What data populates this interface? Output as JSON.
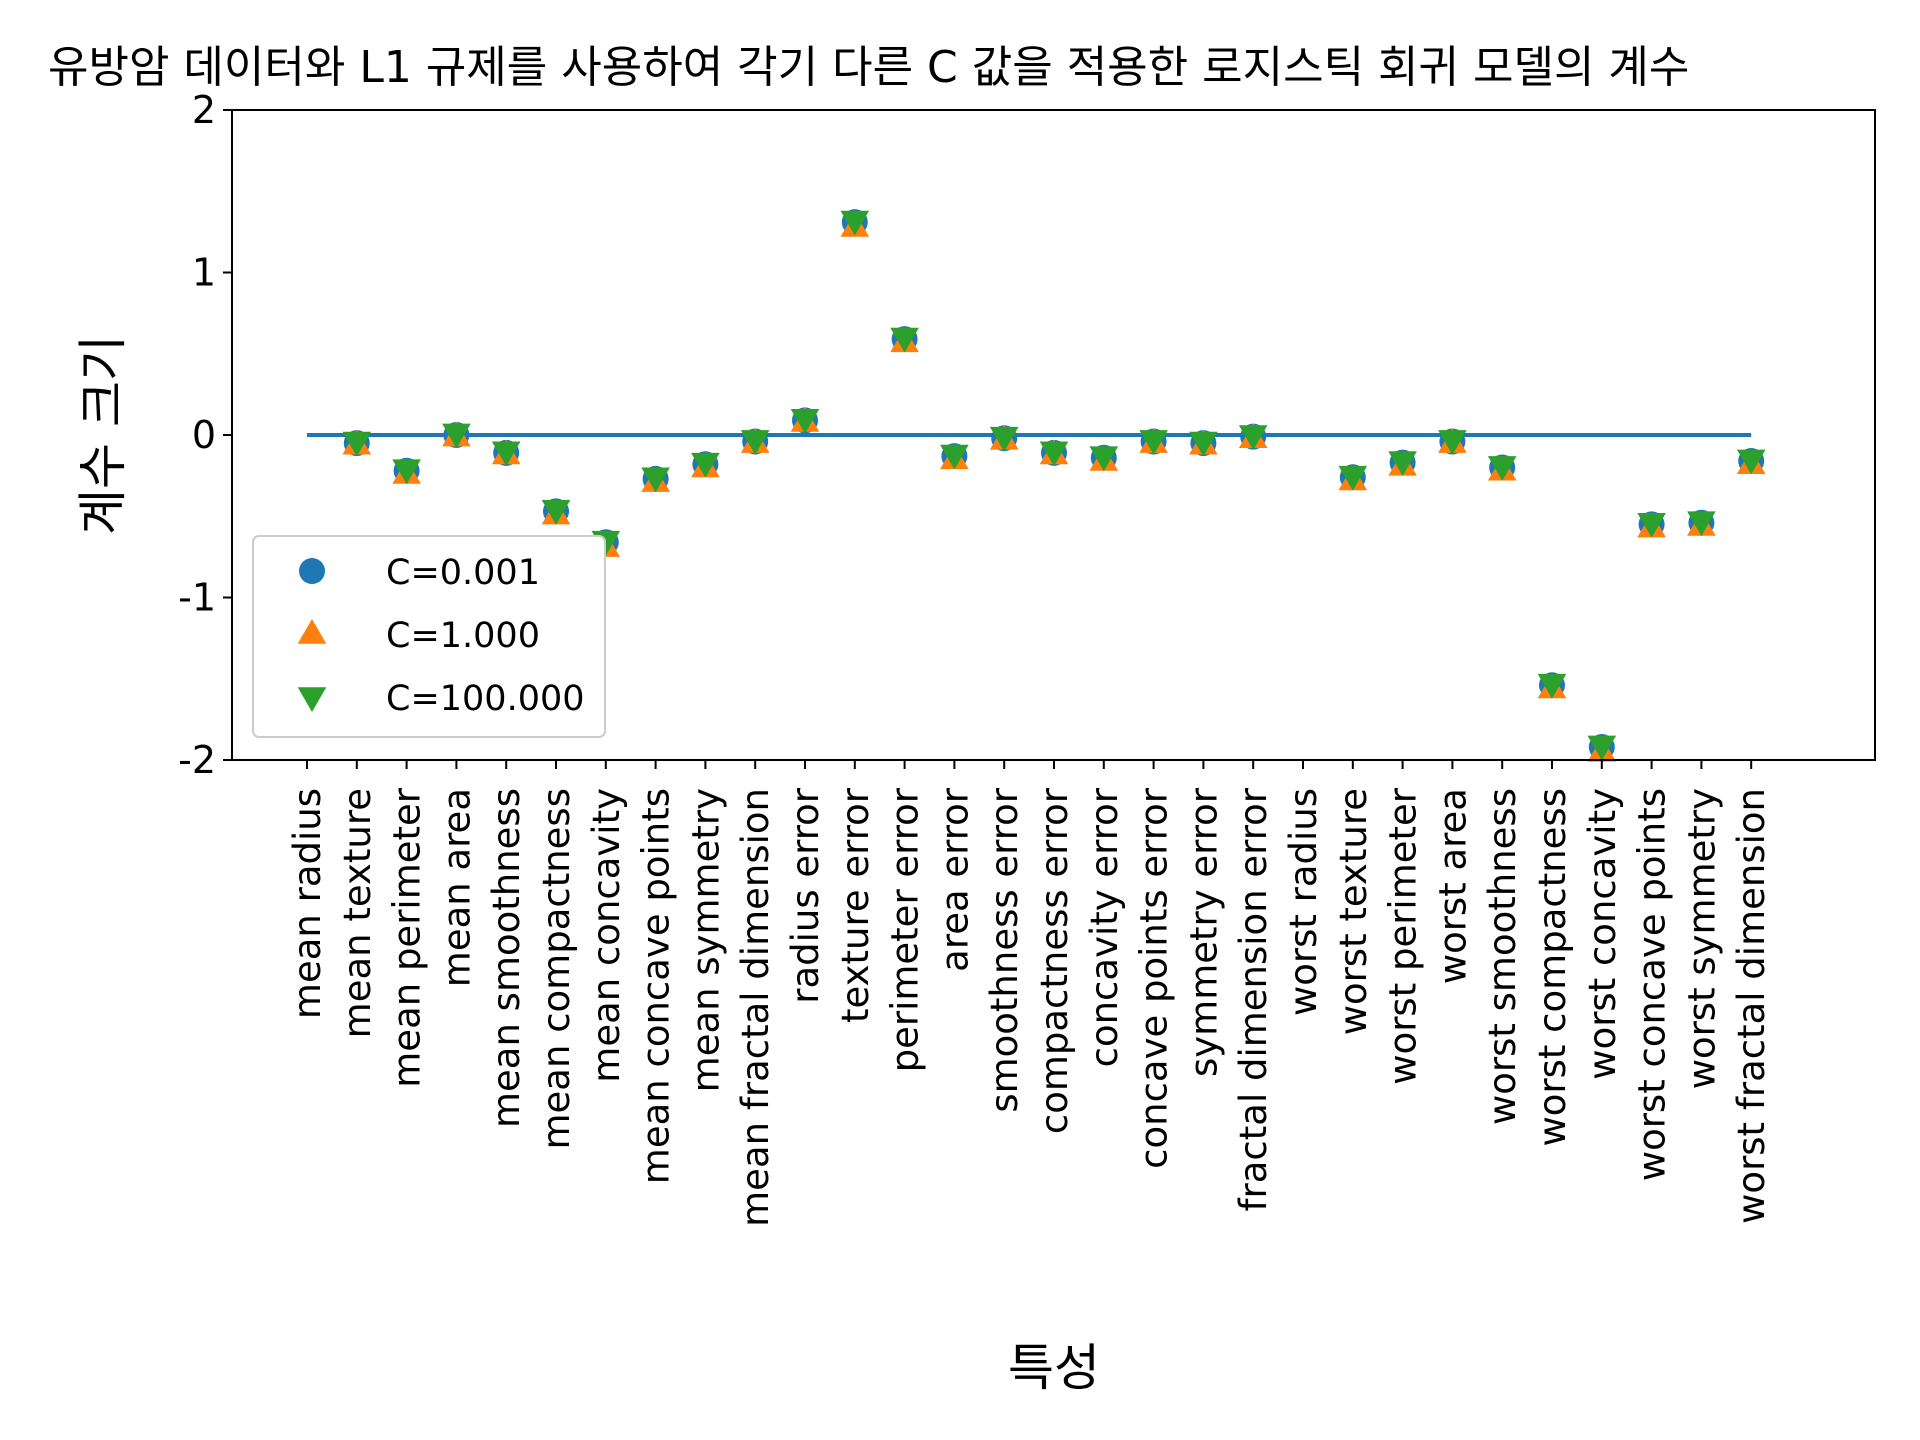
{
  "chart_data": {
    "type": "scatter",
    "title": "유방암 데이터와 L1 규제를 사용하여 각기 다른 C 값을 적용한 로지스틱 회귀 모델의 계수",
    "xlabel": "특성",
    "ylabel": "계수 크기",
    "ylim": [
      -2,
      2
    ],
    "yticks": [
      2,
      1,
      0,
      -1,
      -2
    ],
    "legend_position": "lower-left",
    "grid": false,
    "categories": [
      "mean radius",
      "mean texture",
      "mean perimeter",
      "mean area",
      "mean smoothness",
      "mean compactness",
      "mean concavity",
      "mean concave points",
      "mean symmetry",
      "mean fractal dimension",
      "radius error",
      "texture error",
      "perimeter error",
      "area error",
      "smoothness error",
      "compactness error",
      "concavity error",
      "concave points error",
      "symmetry error",
      "fractal dimension error",
      "worst radius",
      "worst texture",
      "worst perimeter",
      "worst area",
      "worst smoothness",
      "worst compactness",
      "worst concavity",
      "worst concave points",
      "worst symmetry",
      "worst fractal dimension"
    ],
    "hline": {
      "y": 0,
      "color": "#1f77b4"
    },
    "series": [
      {
        "name": "C=0.001",
        "marker": "circle",
        "color": "#1f77b4",
        "values": [
          null,
          -0.05,
          -0.22,
          0.0,
          -0.11,
          -0.47,
          -0.66,
          -0.27,
          -0.18,
          -0.04,
          0.09,
          1.31,
          0.59,
          -0.13,
          -0.02,
          -0.11,
          -0.14,
          -0.04,
          -0.05,
          -0.01,
          null,
          -0.26,
          -0.17,
          -0.04,
          -0.2,
          -1.54,
          -1.92,
          -0.55,
          -0.54,
          -0.16
        ]
      },
      {
        "name": "C=1.000",
        "marker": "triangle-up",
        "color": "#ff7f0e",
        "values": [
          null,
          -0.06,
          -0.24,
          -0.01,
          -0.12,
          -0.49,
          -0.69,
          -0.29,
          -0.2,
          -0.05,
          0.08,
          1.28,
          0.57,
          -0.15,
          -0.03,
          -0.12,
          -0.16,
          -0.05,
          -0.06,
          -0.02,
          null,
          -0.28,
          -0.19,
          -0.05,
          -0.22,
          -1.56,
          -1.95,
          -0.57,
          -0.56,
          -0.18
        ]
      },
      {
        "name": "C=100.000",
        "marker": "triangle-down",
        "color": "#2ca02c",
        "values": [
          null,
          -0.04,
          -0.21,
          0.01,
          -0.1,
          -0.46,
          -0.65,
          -0.26,
          -0.17,
          -0.03,
          0.1,
          1.32,
          0.6,
          -0.12,
          -0.01,
          -0.1,
          -0.13,
          -0.03,
          -0.04,
          0.0,
          null,
          -0.25,
          -0.16,
          -0.03,
          -0.19,
          -1.53,
          -1.91,
          -0.54,
          -0.53,
          -0.15
        ]
      }
    ]
  }
}
